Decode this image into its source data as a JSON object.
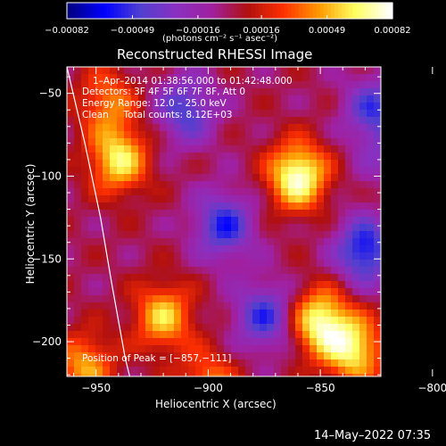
{
  "chart_data": {
    "type": "heatmap",
    "title": "Reconstructed RHESSI Image",
    "xlabel": "Heliocentric X (arcsec)",
    "ylabel": "Heliocentric Y (arcsec)",
    "xlim": [
      -963,
      -823
    ],
    "ylim": [
      -221,
      -34
    ],
    "xticks": [
      -950,
      -900,
      -850,
      -800
    ],
    "xtick_labels": [
      "−950",
      "−900",
      "−850",
      "−800"
    ],
    "yticks": [
      -50,
      -100,
      -150,
      -200
    ],
    "ytick_labels": [
      "−50",
      "−100",
      "−150",
      "−200"
    ],
    "colorbar": {
      "ticks": [
        -0.00082,
        -0.00049,
        -0.00016,
        0.00016,
        0.00049,
        0.00082
      ],
      "tick_labels": [
        "−0.00082",
        "−0.00049",
        "−0.00016",
        "0.00016",
        "0.00049",
        "0.00082"
      ],
      "unit_label": "(photons cm⁻² s⁻¹ asec⁻²)",
      "colormap": [
        "#000080",
        "#0000ff",
        "#5040d0",
        "#8a30c0",
        "#a020a0",
        "#b01010",
        "#ff3000",
        "#ff9a00",
        "#ffff60",
        "#ffffff"
      ]
    },
    "annotation_lines": [
      "1–Apr–2014 01:38:56.000 to 01:42:48.000",
      "Detectors: 3F 4F 5F 6F 7F 8F, Att 0",
      "Energy Range: 12.0 – 25.0 keV",
      "Clean     Total counts: 8.12E+03"
    ],
    "peak_label": "Position of Peak = [−857,−111]",
    "peak": [
      -857,
      -111
    ],
    "grid": false,
    "blobs": [
      {
        "x": -860,
        "y": -100,
        "amp": 1.0
      },
      {
        "x": -850,
        "y": -188,
        "amp": 0.9
      },
      {
        "x": -835,
        "y": -205,
        "amp": 0.8
      },
      {
        "x": -795,
        "y": -65,
        "amp": 0.85
      },
      {
        "x": -805,
        "y": -110,
        "amp": 0.75
      },
      {
        "x": -800,
        "y": -155,
        "amp": 0.8
      },
      {
        "x": -790,
        "y": -190,
        "amp": 0.75
      },
      {
        "x": -940,
        "y": -90,
        "amp": 0.8
      },
      {
        "x": -945,
        "y": -55,
        "amp": 0.5
      },
      {
        "x": -920,
        "y": -185,
        "amp": 0.7
      },
      {
        "x": -955,
        "y": -215,
        "amp": 0.6
      },
      {
        "x": -900,
        "y": -225,
        "amp": 0.5
      },
      {
        "x": -893,
        "y": -130,
        "amp": -0.7
      },
      {
        "x": -910,
        "y": -60,
        "amp": -0.6
      },
      {
        "x": -830,
        "y": -145,
        "amp": -0.8
      },
      {
        "x": -875,
        "y": -185,
        "amp": -0.65
      },
      {
        "x": -826,
        "y": -60,
        "amp": -0.6
      },
      {
        "x": -820,
        "y": -90,
        "amp": -0.3
      }
    ],
    "limb": [
      [
        -963,
        -34
      ],
      [
        -955,
        -80
      ],
      [
        -948,
        -125
      ],
      [
        -943,
        -165
      ],
      [
        -937,
        -210
      ],
      [
        -935,
        -221
      ]
    ]
  },
  "footer": {
    "timestamp": "14–May–2022 07:35"
  }
}
